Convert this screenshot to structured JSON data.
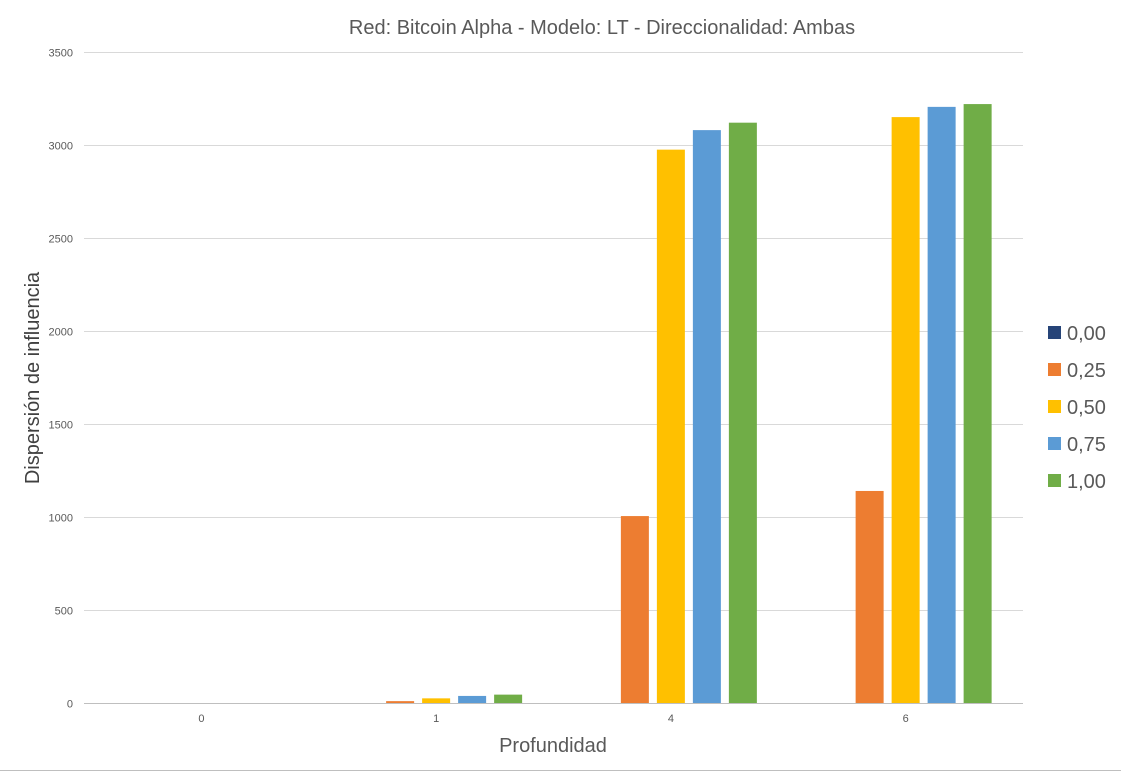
{
  "chart_data": {
    "type": "bar",
    "title": "Red: Bitcoin Alpha - Modelo: LT - Direccionalidad: Ambas",
    "xlabel": "Profundidad",
    "ylabel": "Dispersión de influencia",
    "categories": [
      "0",
      "1",
      "4",
      "6"
    ],
    "ylim": [
      0,
      3500
    ],
    "yticks": [
      0,
      500,
      1000,
      1500,
      2000,
      2500,
      3000,
      3500
    ],
    "grid": true,
    "legend_position": "right",
    "series": [
      {
        "name": "0,00",
        "color": "#264478",
        "values": [
          0,
          0,
          0,
          0
        ]
      },
      {
        "name": "0,25",
        "color": "#ED7D31",
        "values": [
          0,
          10,
          1005,
          1140
        ]
      },
      {
        "name": "0,50",
        "color": "#FFC000",
        "values": [
          0,
          25,
          2975,
          3150
        ]
      },
      {
        "name": "0,75",
        "color": "#5B9BD5",
        "values": [
          0,
          38,
          3080,
          3205
        ]
      },
      {
        "name": "1,00",
        "color": "#70AD47",
        "values": [
          0,
          45,
          3120,
          3220
        ]
      }
    ]
  }
}
